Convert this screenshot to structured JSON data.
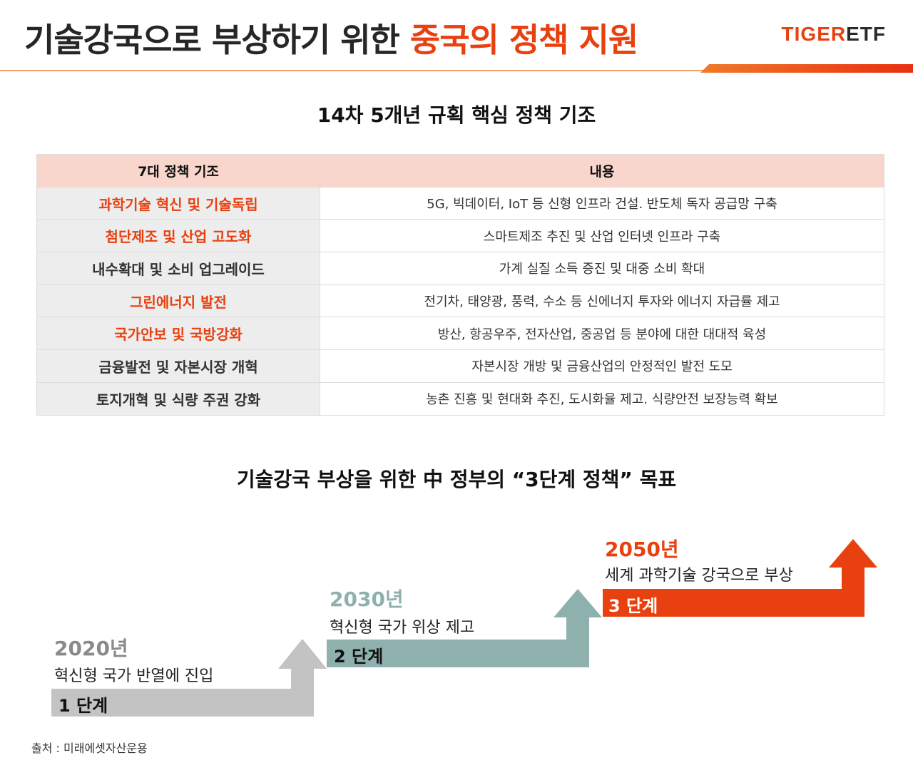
{
  "header": {
    "title_prefix": "기술강국으로 부상하기 위한 ",
    "title_highlight": "중국의 정책 지원",
    "logo_tiger": "TIGER",
    "logo_etf": "ETF"
  },
  "colors": {
    "accent": "#e8400f",
    "table_header_bg": "#f9d6cb",
    "step1": "#c3c3c3",
    "step2": "#8fb1ae",
    "step3": "#e8400f"
  },
  "table": {
    "title": "14차 5개년 규획 핵심 정책 기조",
    "headers": [
      "7대 정책 기조",
      "내용"
    ],
    "rows": [
      {
        "policy": "과학기술 혁신 및 기술독립",
        "content": "5G, 빅데이터, IoT 등 신형 인프라 건설. 반도체 독자 공급망 구축",
        "highlight": true
      },
      {
        "policy": "첨단제조 및 산업 고도화",
        "content": "스마트제조 추진 및 산업 인터넷 인프라 구축",
        "highlight": true
      },
      {
        "policy": "내수확대 및 소비 업그레이드",
        "content": "가계 실질 소득 증진 및 대중 소비 확대",
        "highlight": false
      },
      {
        "policy": "그린에너지 발전",
        "content": "전기차, 태양광, 풍력, 수소 등 신에너지 투자와 에너지 자급률 제고",
        "highlight": true
      },
      {
        "policy": "국가안보 및 국방강화",
        "content": "방산, 항공우주, 전자산업, 중공업 등 분야에 대한 대대적 육성",
        "highlight": true
      },
      {
        "policy": "금융발전 및 자본시장 개혁",
        "content": "자본시장 개방 및 금융산업의 안정적인 발전 도모",
        "highlight": false
      },
      {
        "policy": "토지개혁 및 식량 주권 강화",
        "content": "농촌 진흥 및 현대화 추진, 도시화율 제고. 식량안전 보장능력 확보",
        "highlight": false
      }
    ]
  },
  "steps": {
    "title": "기술강국 부상을 위한 中 정부의 “3단계 정책” 목표",
    "items": [
      {
        "year": "2020년",
        "desc": "혁신형 국가 반열에 진입",
        "stage": "1 단계"
      },
      {
        "year": "2030년",
        "desc": "혁신형 국가 위상 제고",
        "stage": "2 단계"
      },
      {
        "year": "2050년",
        "desc": "세계 과학기술 강국으로 부상",
        "stage": "3 단계"
      }
    ]
  },
  "footer": {
    "source": "출처 : 미래에셋자산운용"
  }
}
